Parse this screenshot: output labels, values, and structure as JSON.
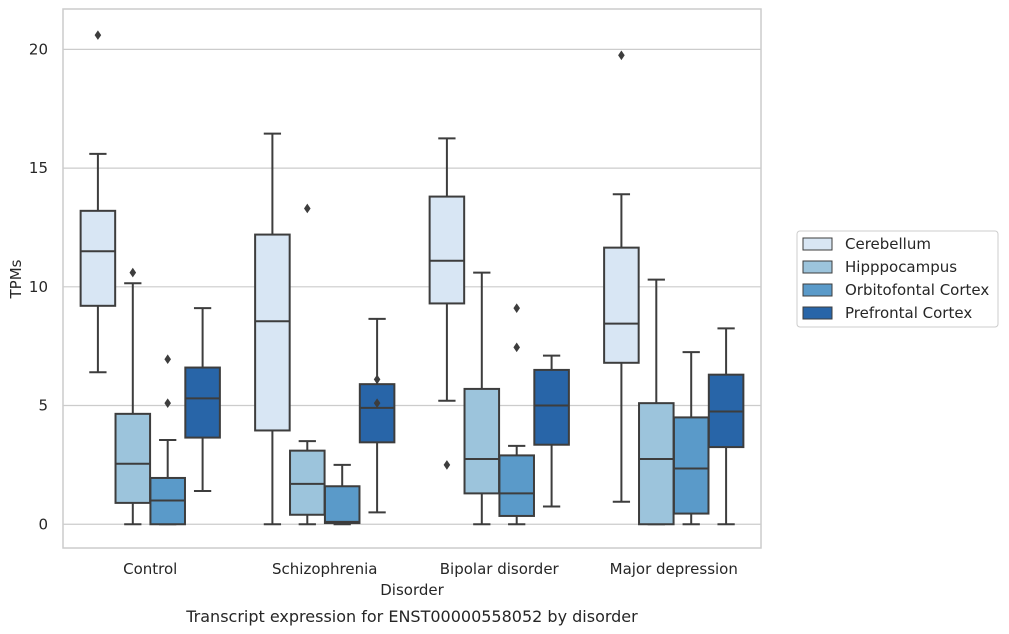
{
  "chart_data": {
    "type": "box",
    "title": "",
    "caption": "Transcript expression for ENST00000558052 by disorder",
    "xlabel": "Disorder",
    "ylabel": "TPMs",
    "ylim": [
      -1,
      21.7
    ],
    "yticks": [
      0,
      5,
      10,
      15,
      20
    ],
    "grid": "horizontal",
    "legend_position": "right",
    "categories": [
      "Control",
      "Schizophrenia",
      "Bipolar disorder",
      "Major depression"
    ],
    "series": [
      {
        "name": "Cerebellum",
        "color": "#d8e6f4",
        "boxes": [
          {
            "whisker_low": 6.4,
            "q1": 9.2,
            "median": 11.5,
            "q3": 13.2,
            "whisker_high": 15.6,
            "outliers": [
              20.6
            ]
          },
          {
            "whisker_low": 0.0,
            "q1": 3.95,
            "median": 8.55,
            "q3": 12.2,
            "whisker_high": 16.45,
            "outliers": []
          },
          {
            "whisker_low": 5.2,
            "q1": 9.3,
            "median": 11.1,
            "q3": 13.8,
            "whisker_high": 16.25,
            "outliers": [
              2.5
            ]
          },
          {
            "whisker_low": 0.95,
            "q1": 6.8,
            "median": 8.45,
            "q3": 11.65,
            "whisker_high": 13.9,
            "outliers": [
              19.75
            ]
          }
        ]
      },
      {
        "name": "Hipppocampus",
        "color": "#9cc4dc",
        "boxes": [
          {
            "whisker_low": 0.0,
            "q1": 0.9,
            "median": 2.55,
            "q3": 4.65,
            "whisker_high": 10.15,
            "outliers": [
              10.6
            ]
          },
          {
            "whisker_low": 0.0,
            "q1": 0.4,
            "median": 1.7,
            "q3": 3.1,
            "whisker_high": 3.5,
            "outliers": [
              13.3
            ]
          },
          {
            "whisker_low": 0.0,
            "q1": 1.3,
            "median": 2.75,
            "q3": 5.7,
            "whisker_high": 10.6,
            "outliers": []
          },
          {
            "whisker_low": 0.0,
            "q1": 0.0,
            "median": 2.75,
            "q3": 5.1,
            "whisker_high": 10.3,
            "outliers": []
          }
        ]
      },
      {
        "name": "Orbitofontal Cortex",
        "color": "#5a9ac9",
        "boxes": [
          {
            "whisker_low": 0.0,
            "q1": 0.0,
            "median": 1.0,
            "q3": 1.95,
            "whisker_high": 3.55,
            "outliers": [
              5.1,
              6.95
            ]
          },
          {
            "whisker_low": 0.0,
            "q1": 0.05,
            "median": 0.1,
            "q3": 1.6,
            "whisker_high": 2.5,
            "outliers": []
          },
          {
            "whisker_low": 0.0,
            "q1": 0.35,
            "median": 1.3,
            "q3": 2.9,
            "whisker_high": 3.3,
            "outliers": [
              7.45,
              9.1
            ]
          },
          {
            "whisker_low": 0.0,
            "q1": 0.45,
            "median": 2.35,
            "q3": 4.5,
            "whisker_high": 7.25,
            "outliers": []
          }
        ]
      },
      {
        "name": "Prefrontal Cortex",
        "color": "#2865a8",
        "boxes": [
          {
            "whisker_low": 1.4,
            "q1": 3.65,
            "median": 5.3,
            "q3": 6.6,
            "whisker_high": 9.1,
            "outliers": []
          },
          {
            "whisker_low": 0.5,
            "q1": 3.45,
            "median": 4.9,
            "q3": 5.9,
            "whisker_high": 8.65,
            "outliers": [
              5.1,
              6.1
            ]
          },
          {
            "whisker_low": 0.75,
            "q1": 3.35,
            "median": 5.0,
            "q3": 6.5,
            "whisker_high": 7.1,
            "outliers": []
          },
          {
            "whisker_low": 0.0,
            "q1": 3.25,
            "median": 4.75,
            "q3": 6.3,
            "whisker_high": 8.25,
            "outliers": []
          }
        ]
      }
    ]
  }
}
